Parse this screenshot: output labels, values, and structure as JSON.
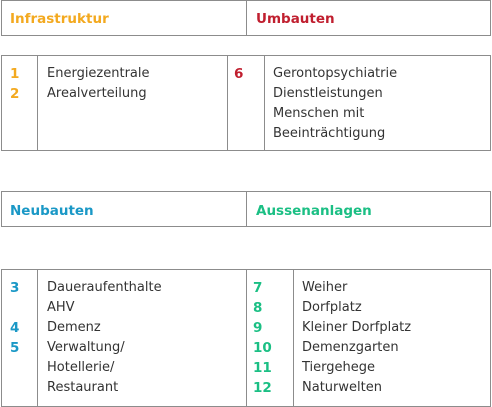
{
  "colors": {
    "infrastruktur": "#f3a91f",
    "umbauten": "#c01f2f",
    "neubauten": "#1a98c6",
    "aussenanlagen": "#1bbf84",
    "border": "#8c8c8c",
    "text": "#333333"
  },
  "headers": {
    "infrastruktur": "Infrastruktur",
    "umbauten": "Umbauten",
    "neubauten": "Neubauten",
    "aussenanlagen": "Aussenanlagen"
  },
  "infrastruktur": {
    "items": [
      {
        "num": "1",
        "label": "Energiezentrale"
      },
      {
        "num": "2",
        "label": "Arealverteilung"
      }
    ]
  },
  "umbauten": {
    "num": "6",
    "lines": [
      "Gerontopsychiatrie",
      "Dienstleistungen",
      "Menschen mit",
      "Beeinträchtigung"
    ]
  },
  "neubauten": {
    "num3": "3",
    "num4": "4",
    "num5": "5",
    "lines": [
      "Daueraufenthalte",
      "AHV",
      "Demenz",
      "Verwaltung/",
      "Hotellerie/",
      "Restaurant"
    ]
  },
  "aussenanlagen": {
    "items": [
      {
        "num": "7",
        "label": "Weiher"
      },
      {
        "num": "8",
        "label": "Dorfplatz"
      },
      {
        "num": "9",
        "label": "Kleiner Dorfplatz"
      },
      {
        "num": "10",
        "label": "Demenzgarten"
      },
      {
        "num": "11",
        "label": "Tiergehege"
      },
      {
        "num": "12",
        "label": "Naturwelten"
      }
    ]
  }
}
